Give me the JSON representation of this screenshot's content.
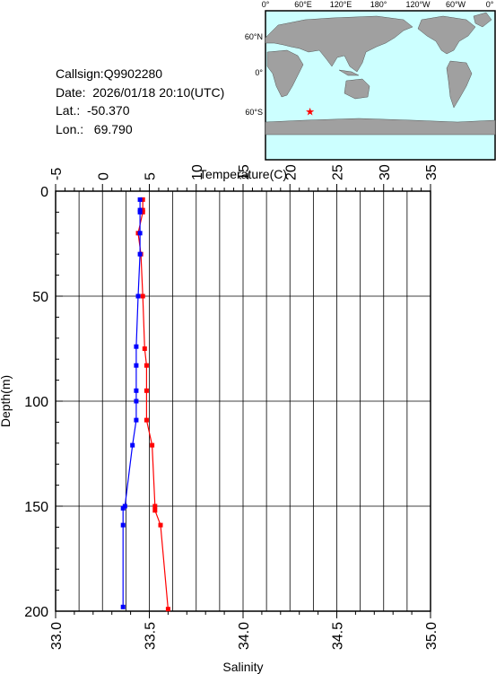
{
  "station": {
    "callsign": "Callsign:Q9902280",
    "date": "Date:  2026/01/18 20:10(UTC)",
    "lat": "Lat.:  -50.370",
    "lon": "Lon.:   69.790"
  },
  "map": {
    "lon_labels": [
      "0°",
      "60°E",
      "120°E",
      "180°",
      "120°W",
      "60°W",
      "0°"
    ],
    "lat_labels": [
      "60°N",
      "0°",
      "60°S"
    ],
    "marker": {
      "lat": -50.37,
      "lon": 69.79,
      "symbol": "★"
    },
    "colors": {
      "ocean": "#ccffff",
      "land": "#a0a0a0",
      "marker": "#ff0000"
    }
  },
  "chart_data": {
    "type": "line",
    "y_axis": {
      "label": "Depth(m)",
      "ylim": [
        200,
        0
      ],
      "ticks": [
        "0",
        "50",
        "100",
        "150",
        "200"
      ]
    },
    "x_top": {
      "label": "Temperature(C)",
      "xlim": [
        -5,
        35
      ],
      "ticks": [
        "-5",
        "0",
        "5",
        "10",
        "15",
        "20",
        "25",
        "30",
        "35"
      ]
    },
    "x_bottom": {
      "label": "Salinity",
      "xlim": [
        33.0,
        35.0
      ],
      "ticks": [
        "33.0",
        "33.5",
        "34.0",
        "34.5",
        "35.0"
      ]
    },
    "grid": true,
    "series": [
      {
        "axis": "temperature",
        "color": "#ff0000",
        "points": [
          [
            4.3,
            4
          ],
          [
            4.3,
            9
          ],
          [
            4.3,
            10
          ],
          [
            3.8,
            20
          ],
          [
            4.1,
            30
          ],
          [
            4.3,
            50
          ],
          [
            4.5,
            75
          ],
          [
            4.7,
            83
          ],
          [
            4.7,
            95
          ],
          [
            4.7,
            109
          ],
          [
            5.3,
            121
          ],
          [
            5.6,
            150
          ],
          [
            5.6,
            152
          ],
          [
            6.2,
            159
          ],
          [
            7.0,
            199
          ]
        ]
      },
      {
        "axis": "salinity",
        "color": "#0000ff",
        "points": [
          [
            33.45,
            4
          ],
          [
            33.45,
            9
          ],
          [
            33.45,
            10
          ],
          [
            33.45,
            20
          ],
          [
            33.45,
            30
          ],
          [
            33.44,
            50
          ],
          [
            33.43,
            74
          ],
          [
            33.43,
            83
          ],
          [
            33.43,
            95
          ],
          [
            33.43,
            100
          ],
          [
            33.43,
            109
          ],
          [
            33.41,
            121
          ],
          [
            33.37,
            150
          ],
          [
            33.36,
            151
          ],
          [
            33.36,
            159
          ],
          [
            33.36,
            198
          ]
        ]
      }
    ]
  }
}
